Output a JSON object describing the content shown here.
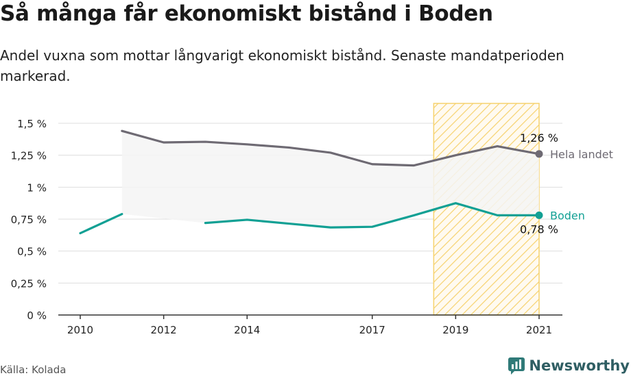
{
  "title": "Så många får ekonomiskt bistånd i Boden",
  "subtitle": "Andel vuxna som mottar långvarigt ekonomiskt bistånd. Senaste mandatperioden markerad.",
  "source": "Källa: Kolada",
  "brand": "Newsworthy",
  "colors": {
    "national": "#6e6a73",
    "local": "#12a094",
    "highlight_stroke": "#f6d26e",
    "gap_fill": "#f4f4f4",
    "axis": "#333333",
    "grid": "#dddddd"
  },
  "chart_data": {
    "type": "line",
    "x_ticks": [
      2010,
      2012,
      2014,
      2017,
      2019,
      2021
    ],
    "x_range": [
      2010,
      2021
    ],
    "y_ticks": [
      {
        "value": 0,
        "label": "0 %"
      },
      {
        "value": 0.25,
        "label": "0,25 %"
      },
      {
        "value": 0.5,
        "label": "0,5 %"
      },
      {
        "value": 0.75,
        "label": "0,75 %"
      },
      {
        "value": 1,
        "label": "1 %"
      },
      {
        "value": 1.25,
        "label": "1,25 %"
      },
      {
        "value": 1.5,
        "label": "1,5 %"
      }
    ],
    "ylim": [
      0,
      1.5
    ],
    "highlight_period": [
      2019,
      2021
    ],
    "series": [
      {
        "name": "Hela landet",
        "key": "national",
        "segments": [
          [
            [
              2011,
              1.44
            ],
            [
              2012,
              1.35
            ],
            [
              2013,
              1.355
            ],
            [
              2014,
              1.335
            ],
            [
              2015,
              1.31
            ],
            [
              2016,
              1.27
            ],
            [
              2017,
              1.18
            ],
            [
              2018,
              1.17
            ],
            [
              2019,
              1.25
            ],
            [
              2020,
              1.32
            ],
            [
              2021,
              1.26
            ]
          ]
        ],
        "end_label": "1,26 %"
      },
      {
        "name": "Boden",
        "key": "local",
        "segments": [
          [
            [
              2010,
              0.64
            ],
            [
              2011,
              0.79
            ]
          ],
          [
            [
              2013,
              0.72
            ],
            [
              2014,
              0.745
            ],
            [
              2015,
              0.715
            ],
            [
              2016,
              0.685
            ],
            [
              2017,
              0.69
            ],
            [
              2018,
              0.78
            ],
            [
              2019,
              0.875
            ],
            [
              2020,
              0.78
            ],
            [
              2021,
              0.78
            ]
          ]
        ],
        "end_label": "0,78 %"
      }
    ]
  }
}
